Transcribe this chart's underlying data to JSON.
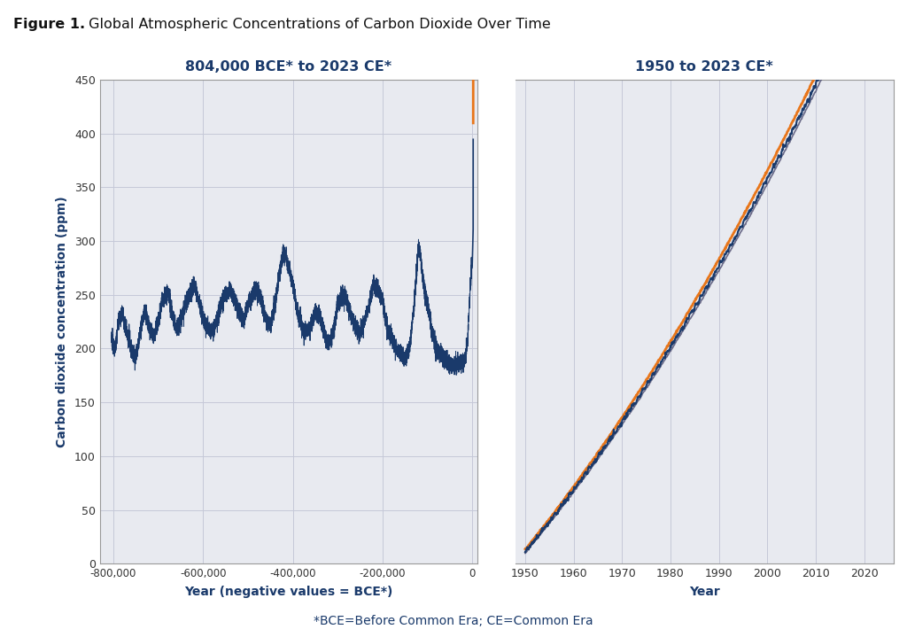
{
  "title_bold": "Figure 1.",
  "title_rest": " Global Atmospheric Concentrations of Carbon Dioxide Over Time",
  "subtitle_footnote": "*BCE=Before Common Era; CE=Common Era",
  "left_chart_title": "804,000 BCE* to 2023 CE*",
  "right_chart_title": "1950 to 2023 CE*",
  "ylabel": "Carbon dioxide concentration (ppm)",
  "left_xlabel": "Year (negative values = BCE*)",
  "right_xlabel": "Year",
  "left_xlim": [
    -830000,
    12000
  ],
  "left_ylim": [
    0,
    450
  ],
  "right_xlim": [
    1948,
    2026
  ],
  "right_ylim": [
    308,
    428
  ],
  "left_xticks": [
    -800000,
    -600000,
    -400000,
    -200000,
    0
  ],
  "left_xtick_labels": [
    "-800,000",
    "-600,000",
    "-400,000",
    "-200,000",
    "0"
  ],
  "left_yticks": [
    0,
    50,
    100,
    150,
    200,
    250,
    300,
    350,
    400,
    450
  ],
  "right_xticks": [
    1950,
    1960,
    1970,
    1980,
    1990,
    2000,
    2010,
    2020
  ],
  "grid_color": "#c5c8d8",
  "plot_bg_color": "#e8eaf0",
  "line_color_blue": "#1a3a6b",
  "line_color_orange": "#e8761a",
  "line_color_red": "#cc2200",
  "line_color_green": "#b8cc20",
  "fig_bg_color": "#ffffff",
  "title_color": "#111111",
  "footnote_color": "#1a3a6b",
  "axis_label_color": "#1a3a6b",
  "tick_label_color": "#333333",
  "chart_title_color": "#1a3a6b",
  "spine_color": "#999999"
}
